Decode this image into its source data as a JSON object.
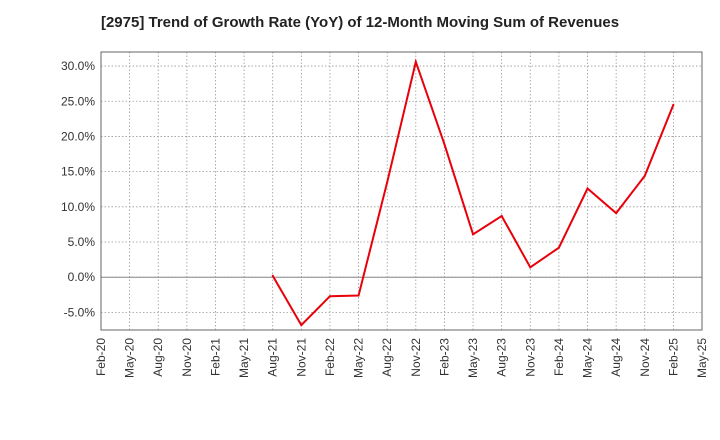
{
  "chart_data": {
    "type": "line",
    "title": "[2975]  Trend of Growth Rate (YoY) of 12-Month Moving Sum of Revenues",
    "xlabel": "",
    "ylabel": "",
    "x_ticks": [
      "Feb-20",
      "May-20",
      "Aug-20",
      "Nov-20",
      "Feb-21",
      "May-21",
      "Aug-21",
      "Nov-21",
      "Feb-22",
      "May-22",
      "Aug-22",
      "Nov-22",
      "Feb-23",
      "May-23",
      "Aug-23",
      "Nov-23",
      "Feb-24",
      "May-24",
      "Aug-24",
      "Nov-24",
      "Feb-25",
      "May-25"
    ],
    "y_ticks": [
      -5.0,
      0.0,
      5.0,
      10.0,
      15.0,
      20.0,
      25.0,
      30.0
    ],
    "y_tick_format": "percent_1dp",
    "ylim": [
      -7.5,
      32.0
    ],
    "grid": true,
    "series": [
      {
        "color": "#e8000b",
        "x": [
          "Aug-21",
          "Nov-21",
          "Feb-22",
          "May-22",
          "Aug-22",
          "Nov-22",
          "Feb-23",
          "May-23",
          "Aug-23",
          "Nov-23",
          "Feb-24",
          "May-24",
          "Aug-24",
          "Nov-24",
          "Feb-25"
        ],
        "values": [
          0.2,
          -6.8,
          -2.7,
          -2.6,
          13.5,
          30.6,
          18.9,
          6.1,
          8.7,
          1.4,
          4.2,
          12.6,
          9.1,
          14.4,
          24.5
        ]
      }
    ]
  }
}
